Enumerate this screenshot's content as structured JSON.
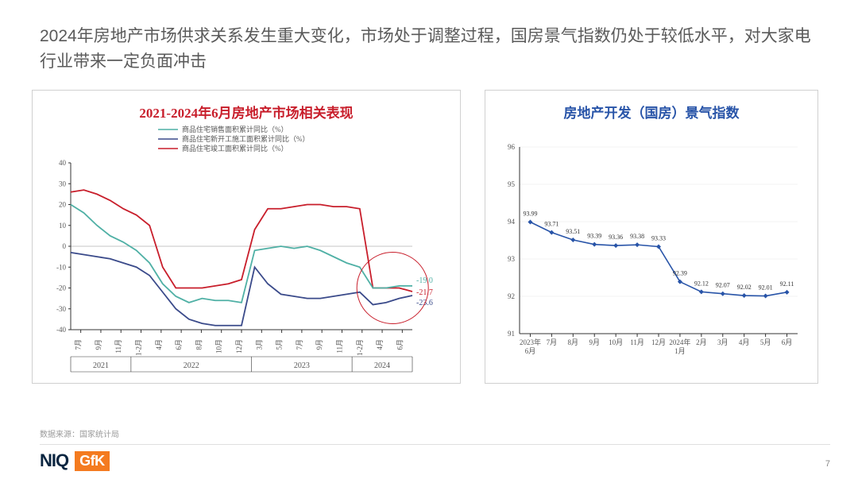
{
  "header": "2024年房地产市场供求关系发生重大变化，市场处于调整过程，国房景气指数仍处于较低水平，对大家电行业带来一定负面冲击",
  "source": "数据来源：国家统计局",
  "pagenum": "7",
  "logos": {
    "niq": "NIQ",
    "gfk": "GfK"
  },
  "left_chart": {
    "title": "2021-2024年6月房地产市场相关表现",
    "legend": [
      "商品住宅销售面积累计同比（%）",
      "商品住宅新开工施工面积累计同比（%）",
      "商品住宅竣工面积累计同比（%）"
    ],
    "legend_colors": [
      "#4fb0a5",
      "#3a4a8a",
      "#c81e2b"
    ],
    "ylim": [
      -40,
      40
    ],
    "ytick_step": 10,
    "x_groups": [
      {
        "year": "2021",
        "labels": [
          "7月",
          "9月",
          "11月"
        ]
      },
      {
        "year": "2022",
        "labels": [
          "1-2月",
          "4月",
          "6月",
          "8月",
          "10月",
          "12月"
        ]
      },
      {
        "year": "2023",
        "labels": [
          "3月",
          "5月",
          "7月",
          "9月",
          "11月"
        ]
      },
      {
        "year": "2024",
        "labels": [
          "1-2月",
          "4月",
          "6月"
        ]
      }
    ],
    "series": {
      "sales": [
        20,
        16,
        10,
        5,
        2,
        -2,
        -8,
        -18,
        -24,
        -27,
        -25,
        -26,
        -26,
        -27,
        -2,
        -1,
        0,
        -1,
        0,
        -2,
        -5,
        -8,
        -10,
        -20,
        -20,
        -19,
        -19
      ],
      "starts": [
        -3,
        -4,
        -5,
        -6,
        -8,
        -10,
        -14,
        -22,
        -30,
        -35,
        -37,
        -38,
        -38,
        -38,
        -10,
        -18,
        -23,
        -24,
        -25,
        -25,
        -24,
        -23,
        -22,
        -28,
        -27,
        -25,
        -23.6
      ],
      "completions": [
        26,
        27,
        25,
        22,
        18,
        15,
        10,
        -10,
        -20,
        -20,
        -20,
        -19,
        -18,
        -16,
        8,
        18,
        18,
        19,
        20,
        20,
        19,
        19,
        18,
        -20,
        -20,
        -20,
        -21.7
      ]
    },
    "end_labels": {
      "sales": "-19.0",
      "starts": "-23.6",
      "completions": "-21.7"
    },
    "circle_highlight": true,
    "axis_color": "#333333",
    "grid_color": "#f5f5f5",
    "zero_line_color": "#b0b0b0",
    "tick_fontsize": 9,
    "legend_fontsize": 9
  },
  "right_chart": {
    "title": "房地产开发（国房）景气指数",
    "ylim": [
      91,
      96
    ],
    "ytick_step": 1,
    "x_labels": [
      "2023年\n6月",
      "7月",
      "8月",
      "9月",
      "10月",
      "11月",
      "12月",
      "2024年\n1月",
      "2月",
      "3月",
      "4月",
      "5月",
      "6月"
    ],
    "values": [
      93.99,
      93.71,
      93.51,
      93.39,
      93.36,
      93.38,
      93.33,
      92.39,
      92.12,
      92.07,
      92.02,
      92.01,
      92.11
    ],
    "value_labels": [
      "93.99",
      "93.71",
      "93.51",
      "93.39",
      "93.36",
      "93.38",
      "93.33",
      "92.39",
      "92.12",
      "92.07",
      "92.02",
      "92.01",
      "92.11"
    ],
    "line_color": "#2854a8",
    "marker_color": "#2854a8",
    "marker_style": "diamond",
    "axis_color": "#333333",
    "grid_color": "#e8e8e8",
    "tick_fontsize": 9,
    "label_fontsize": 8
  }
}
